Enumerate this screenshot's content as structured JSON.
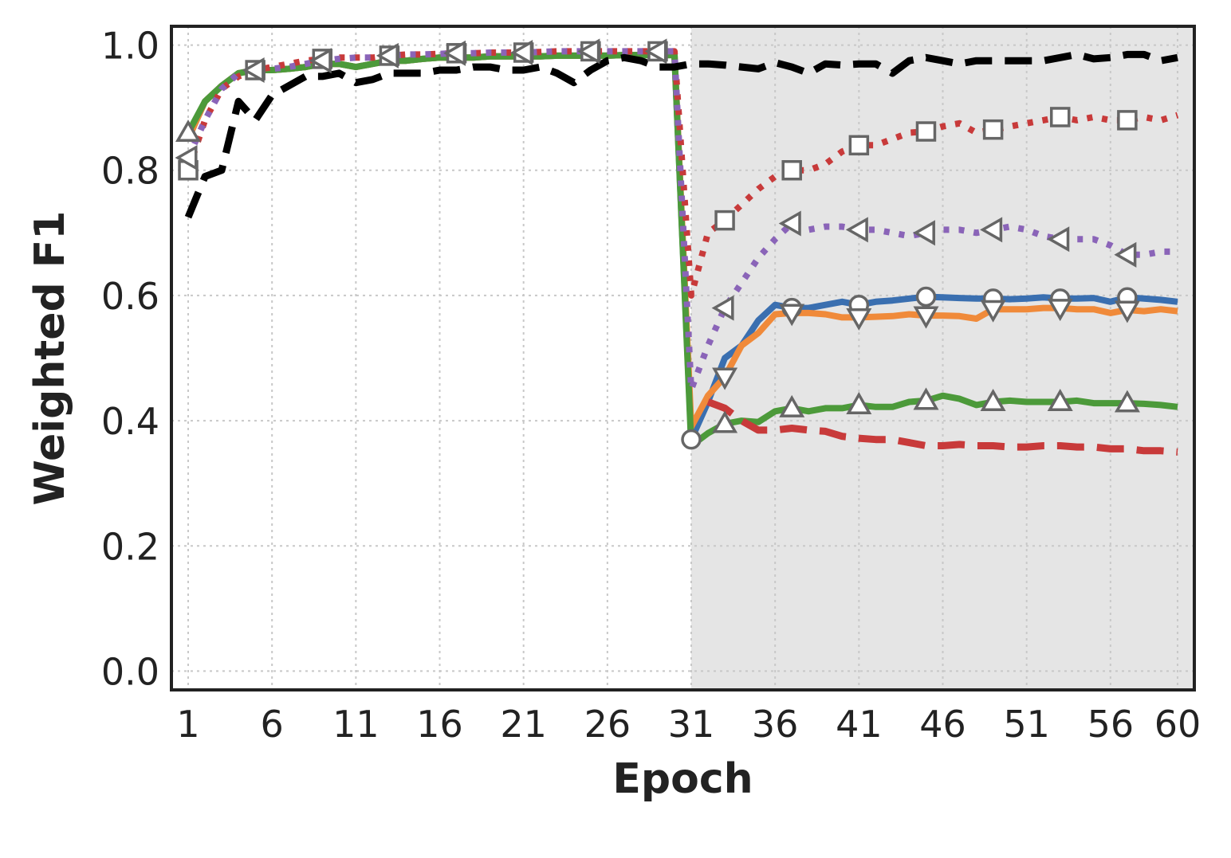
{
  "chart_data": {
    "type": "line",
    "title": "",
    "xlabel": "Epoch",
    "ylabel": "Weighted F1",
    "xlim": [
      0,
      61
    ],
    "ylim": [
      -0.03,
      1.03
    ],
    "xticks": [
      1,
      6,
      11,
      16,
      21,
      26,
      31,
      36,
      41,
      46,
      51,
      56,
      60
    ],
    "yticks": [
      0.0,
      0.2,
      0.4,
      0.6,
      0.8,
      1.0
    ],
    "ytick_labels": [
      "0.0",
      "0.2",
      "0.4",
      "0.6",
      "0.8",
      "1.0"
    ],
    "grid": true,
    "shaded_region": [
      31,
      61
    ],
    "colors": {
      "shade": "#e5e5e5",
      "grid": "#c8c8c8",
      "axis": "#222222",
      "marker_edge": "#666666"
    },
    "x": [
      1,
      2,
      3,
      4,
      5,
      6,
      7,
      8,
      9,
      10,
      11,
      12,
      13,
      14,
      15,
      16,
      17,
      18,
      19,
      20,
      21,
      22,
      23,
      24,
      25,
      26,
      27,
      28,
      29,
      30,
      31,
      32,
      33,
      34,
      35,
      36,
      37,
      38,
      39,
      40,
      41,
      42,
      43,
      44,
      45,
      46,
      47,
      48,
      49,
      50,
      51,
      52,
      53,
      54,
      55,
      56,
      57,
      58,
      59,
      60
    ],
    "series": [
      {
        "color": "#3a6fb0",
        "dash": "solid",
        "marker": "circle",
        "marker_every": [
          31,
          37,
          41,
          45,
          49,
          53,
          57
        ],
        "values": [
          0.85,
          0.91,
          0.935,
          0.955,
          0.96,
          0.96,
          0.962,
          0.965,
          0.97,
          0.97,
          0.965,
          0.97,
          0.975,
          0.975,
          0.978,
          0.98,
          0.98,
          0.98,
          0.982,
          0.982,
          0.982,
          0.982,
          0.983,
          0.983,
          0.983,
          0.983,
          0.984,
          0.984,
          0.984,
          0.984,
          0.37,
          0.43,
          0.5,
          0.52,
          0.56,
          0.585,
          0.58,
          0.58,
          0.585,
          0.59,
          0.585,
          0.59,
          0.592,
          0.595,
          0.598,
          0.597,
          0.596,
          0.595,
          0.595,
          0.594,
          0.595,
          0.597,
          0.595,
          0.595,
          0.596,
          0.59,
          0.597,
          0.595,
          0.593,
          0.59
        ]
      },
      {
        "color": "#f08a3a",
        "dash": "solid",
        "marker": "triangle-down",
        "marker_every": [
          33,
          37,
          41,
          45,
          49,
          53,
          57
        ],
        "values": [
          0.85,
          0.91,
          0.935,
          0.955,
          0.96,
          0.96,
          0.962,
          0.965,
          0.97,
          0.97,
          0.965,
          0.97,
          0.975,
          0.975,
          0.978,
          0.98,
          0.98,
          0.98,
          0.982,
          0.982,
          0.982,
          0.982,
          0.983,
          0.983,
          0.983,
          0.983,
          0.984,
          0.984,
          0.984,
          0.984,
          0.39,
          0.44,
          0.47,
          0.52,
          0.54,
          0.57,
          0.572,
          0.572,
          0.57,
          0.565,
          0.565,
          0.566,
          0.567,
          0.57,
          0.568,
          0.568,
          0.567,
          0.563,
          0.578,
          0.578,
          0.578,
          0.58,
          0.58,
          0.578,
          0.578,
          0.572,
          0.577,
          0.575,
          0.578,
          0.575
        ]
      },
      {
        "color": "#4c9a3a",
        "dash": "solid",
        "marker": "triangle-up",
        "marker_every": [
          1,
          33,
          37,
          41,
          45,
          49,
          53,
          57
        ],
        "values": [
          0.86,
          0.91,
          0.935,
          0.955,
          0.96,
          0.96,
          0.962,
          0.965,
          0.97,
          0.97,
          0.965,
          0.97,
          0.975,
          0.975,
          0.978,
          0.98,
          0.98,
          0.98,
          0.982,
          0.982,
          0.982,
          0.982,
          0.983,
          0.983,
          0.983,
          0.983,
          0.984,
          0.984,
          0.984,
          0.984,
          0.36,
          0.38,
          0.395,
          0.4,
          0.398,
          0.415,
          0.42,
          0.415,
          0.42,
          0.42,
          0.425,
          0.422,
          0.422,
          0.43,
          0.432,
          0.44,
          0.435,
          0.425,
          0.43,
          0.432,
          0.43,
          0.43,
          0.43,
          0.432,
          0.428,
          0.428,
          0.428,
          0.427,
          0.425,
          0.422
        ]
      },
      {
        "color": "#c83a3a",
        "dash": "dotted",
        "marker": "square",
        "marker_every": [
          1,
          5,
          9,
          13,
          17,
          21,
          25,
          29,
          33,
          37,
          41,
          45,
          49,
          53,
          57
        ],
        "values": [
          0.8,
          0.88,
          0.93,
          0.95,
          0.96,
          0.965,
          0.97,
          0.975,
          0.978,
          0.98,
          0.98,
          0.98,
          0.983,
          0.985,
          0.985,
          0.986,
          0.987,
          0.987,
          0.988,
          0.988,
          0.988,
          0.989,
          0.99,
          0.99,
          0.99,
          0.99,
          0.99,
          0.99,
          0.99,
          0.99,
          0.6,
          0.7,
          0.72,
          0.745,
          0.77,
          0.79,
          0.8,
          0.8,
          0.81,
          0.83,
          0.84,
          0.84,
          0.85,
          0.86,
          0.862,
          0.87,
          0.875,
          0.86,
          0.865,
          0.87,
          0.875,
          0.88,
          0.885,
          0.88,
          0.885,
          0.88,
          0.88,
          0.885,
          0.88,
          0.888
        ]
      },
      {
        "color": "#8a64b8",
        "dash": "dotted",
        "marker": "triangle-left",
        "marker_every": [
          1,
          5,
          9,
          13,
          17,
          21,
          25,
          29,
          33,
          37,
          41,
          45,
          49,
          53,
          57
        ],
        "values": [
          0.82,
          0.88,
          0.93,
          0.955,
          0.96,
          0.962,
          0.965,
          0.97,
          0.975,
          0.978,
          0.98,
          0.98,
          0.983,
          0.985,
          0.985,
          0.986,
          0.987,
          0.987,
          0.988,
          0.988,
          0.988,
          0.989,
          0.99,
          0.99,
          0.99,
          0.99,
          0.99,
          0.99,
          0.99,
          0.99,
          0.45,
          0.52,
          0.58,
          0.62,
          0.66,
          0.69,
          0.715,
          0.705,
          0.71,
          0.71,
          0.705,
          0.705,
          0.7,
          0.695,
          0.7,
          0.705,
          0.705,
          0.7,
          0.705,
          0.71,
          0.705,
          0.695,
          0.69,
          0.69,
          0.69,
          0.68,
          0.665,
          0.665,
          0.67,
          0.67
        ]
      },
      {
        "color": "#c83a3a",
        "dash": "dashed",
        "marker": "none",
        "values": [
          null,
          null,
          null,
          null,
          null,
          null,
          null,
          null,
          null,
          null,
          null,
          null,
          null,
          null,
          null,
          null,
          null,
          null,
          null,
          null,
          null,
          null,
          null,
          null,
          null,
          null,
          null,
          null,
          null,
          null,
          null,
          0.43,
          0.42,
          0.4,
          0.385,
          0.385,
          0.388,
          0.385,
          0.383,
          0.375,
          0.372,
          0.37,
          0.37,
          0.365,
          0.36,
          0.36,
          0.362,
          0.36,
          0.36,
          0.358,
          0.358,
          0.36,
          0.36,
          0.358,
          0.358,
          0.355,
          0.355,
          0.352,
          0.352,
          0.35
        ]
      },
      {
        "color": "#000000",
        "dash": "dashed",
        "marker": "none",
        "values": [
          0.725,
          0.79,
          0.8,
          0.91,
          0.88,
          0.92,
          0.935,
          0.95,
          0.95,
          0.955,
          0.94,
          0.945,
          0.955,
          0.955,
          0.955,
          0.96,
          0.96,
          0.965,
          0.965,
          0.96,
          0.96,
          0.965,
          0.955,
          0.94,
          0.96,
          0.975,
          0.98,
          0.975,
          0.965,
          0.965,
          0.97,
          0.97,
          0.968,
          0.965,
          0.962,
          0.972,
          0.965,
          0.955,
          0.97,
          0.968,
          0.97,
          0.97,
          0.955,
          0.975,
          0.98,
          0.975,
          0.97,
          0.975,
          0.975,
          0.975,
          0.975,
          0.975,
          0.98,
          0.985,
          0.978,
          0.98,
          0.985,
          0.985,
          0.975,
          0.98
        ]
      }
    ]
  }
}
